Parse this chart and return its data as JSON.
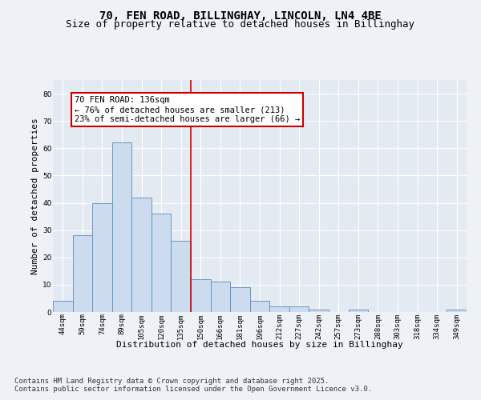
{
  "title1": "70, FEN ROAD, BILLINGHAY, LINCOLN, LN4 4BE",
  "title2": "Size of property relative to detached houses in Billinghay",
  "xlabel": "Distribution of detached houses by size in Billinghay",
  "ylabel": "Number of detached properties",
  "categories": [
    "44sqm",
    "59sqm",
    "74sqm",
    "89sqm",
    "105sqm",
    "120sqm",
    "135sqm",
    "150sqm",
    "166sqm",
    "181sqm",
    "196sqm",
    "212sqm",
    "227sqm",
    "242sqm",
    "257sqm",
    "273sqm",
    "288sqm",
    "303sqm",
    "318sqm",
    "334sqm",
    "349sqm"
  ],
  "values": [
    4,
    28,
    40,
    62,
    42,
    36,
    26,
    12,
    11,
    9,
    4,
    2,
    2,
    1,
    0,
    1,
    0,
    0,
    0,
    0,
    1
  ],
  "bar_color": "#ccdcee",
  "bar_edge_color": "#5b8db8",
  "background_color": "#eef2f7",
  "plot_bg_color": "#e4eaf2",
  "grid_color": "#ffffff",
  "vline_color": "#cc0000",
  "annotation_text": "70 FEN ROAD: 136sqm\n← 76% of detached houses are smaller (213)\n23% of semi-detached houses are larger (66) →",
  "annotation_box_color": "#ffffff",
  "annotation_box_edge": "#cc0000",
  "ylim": [
    0,
    85
  ],
  "yticks": [
    0,
    10,
    20,
    30,
    40,
    50,
    60,
    70,
    80
  ],
  "footer1": "Contains HM Land Registry data © Crown copyright and database right 2025.",
  "footer2": "Contains public sector information licensed under the Open Government Licence v3.0.",
  "title_fontsize": 10,
  "subtitle_fontsize": 9,
  "axis_label_fontsize": 8,
  "tick_fontsize": 6.5,
  "annotation_fontsize": 7.5,
  "footer_fontsize": 6.5,
  "ylabel_fontsize": 8
}
